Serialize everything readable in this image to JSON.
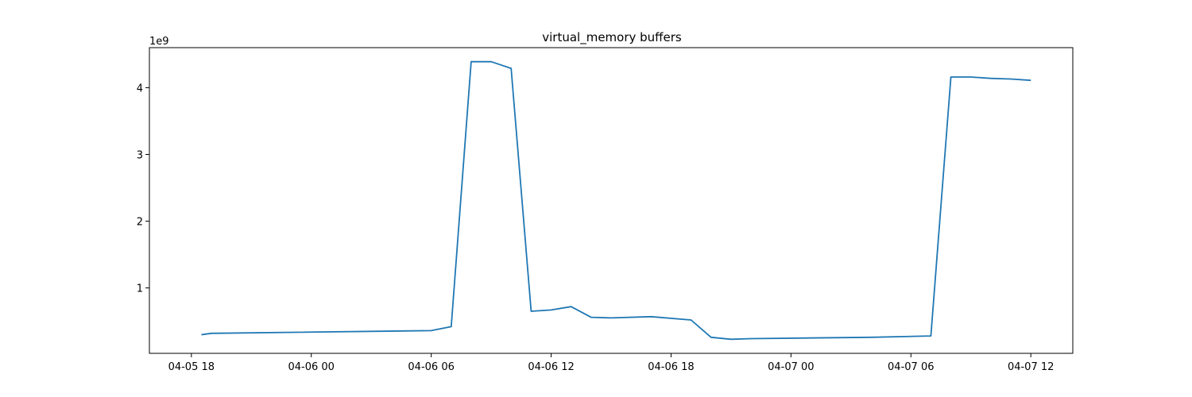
{
  "chart_data": {
    "type": "line",
    "title": "virtual_memory buffers",
    "xlabel": "",
    "ylabel": "",
    "y_offset_label": "1e9",
    "x_ticks": [
      "04-05 18",
      "04-06 00",
      "04-06 06",
      "04-06 12",
      "04-06 18",
      "04-07 00",
      "04-07 06",
      "04-07 12"
    ],
    "y_ticks": [
      "1",
      "2",
      "3",
      "4"
    ],
    "xlim": [
      "2021-04-05 15:54",
      "2021-04-07 14:06"
    ],
    "ylim": [
      0.02,
      4.6
    ],
    "y_multiplier": 1000000000,
    "grid": false,
    "legend": "none",
    "colors": {
      "line": "#1f77b4",
      "axes": "#000000"
    },
    "series": [
      {
        "x": [
          "2021-04-05 18:30",
          "2021-04-05 19:00",
          "2021-04-06 06:00",
          "2021-04-06 07:00",
          "2021-04-06 08:00",
          "2021-04-06 09:00",
          "2021-04-06 10:00",
          "2021-04-06 11:00",
          "2021-04-06 12:00",
          "2021-04-06 13:00",
          "2021-04-06 14:00",
          "2021-04-06 15:00",
          "2021-04-06 17:00",
          "2021-04-06 19:00",
          "2021-04-06 20:00",
          "2021-04-06 21:00",
          "2021-04-06 22:00",
          "2021-04-07 04:00",
          "2021-04-07 07:00",
          "2021-04-07 08:00",
          "2021-04-07 09:00",
          "2021-04-07 10:00",
          "2021-04-07 11:00",
          "2021-04-07 12:00"
        ],
        "values": [
          0.3,
          0.32,
          0.36,
          0.42,
          4.39,
          4.39,
          4.29,
          0.65,
          0.67,
          0.72,
          0.56,
          0.55,
          0.57,
          0.52,
          0.26,
          0.23,
          0.24,
          0.26,
          0.28,
          4.16,
          4.16,
          4.14,
          4.13,
          4.11
        ]
      }
    ]
  }
}
